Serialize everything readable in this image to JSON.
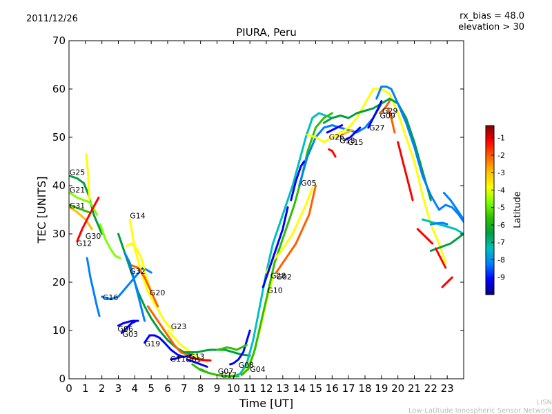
{
  "header": {
    "date": "2011/12/26",
    "rx_bias": "rx_bias = 48.0",
    "elevation": "elevation > 30"
  },
  "footer": {
    "line1": "LISN",
    "line2": "Low-Latitude Ionospheric Sensor Network"
  },
  "colorbar": {
    "label": "Latitude",
    "ticks": [
      "-1",
      "-2",
      "-3",
      "-4",
      "-5",
      "-6",
      "-7",
      "-8",
      "-9"
    ],
    "range": [
      -10,
      -0.3
    ],
    "colormap": [
      "#00007f",
      "#0000ff",
      "#007fff",
      "#00bfbf",
      "#00a040",
      "#2fc000",
      "#7fff00",
      "#ffff00",
      "#ffbf00",
      "#ff6000",
      "#ff0000",
      "#7f0000"
    ]
  },
  "chart_data": {
    "type": "line",
    "title": "PIURA, Peru",
    "xlabel": "Time [UT]",
    "ylabel": "TEC [UNITS]",
    "xlim": [
      0,
      24
    ],
    "ylim": [
      0,
      70
    ],
    "xticks": [
      0,
      1,
      2,
      3,
      4,
      5,
      6,
      7,
      8,
      9,
      10,
      11,
      12,
      13,
      14,
      15,
      16,
      17,
      18,
      19,
      20,
      21,
      22,
      23
    ],
    "yticks": [
      0,
      10,
      20,
      30,
      40,
      50,
      60,
      70
    ],
    "grid": false,
    "series": [
      {
        "name": "G25",
        "lat": -6.5,
        "x": [
          0.05,
          0.5,
          0.9,
          1.2,
          1.5,
          2.0
        ],
        "y": [
          42,
          41.5,
          40.5,
          38,
          34,
          30
        ]
      },
      {
        "name": "G21",
        "lat": -4.5,
        "x": [
          0.05,
          0.5,
          0.9,
          1.3,
          1.7
        ],
        "y": [
          38.5,
          37.5,
          37,
          36.5,
          34
        ]
      },
      {
        "name": "G31",
        "lat": -5.8,
        "x": [
          0.05,
          0.4,
          0.8,
          1.2
        ],
        "y": [
          36,
          35.5,
          35,
          34.5
        ]
      },
      {
        "name": "G30",
        "lat": -3.2,
        "x": [
          0.05,
          0.5,
          1.0,
          1.4
        ],
        "y": [
          35.5,
          34.5,
          33,
          31
        ]
      },
      {
        "name": "G12",
        "lat": -1.5,
        "x": [
          0.5,
          0.8,
          1.1,
          1.4,
          1.8
        ],
        "y": [
          28.5,
          31,
          33,
          35,
          37.5
        ]
      },
      {
        "name": "",
        "lat": -3.6,
        "x": [
          1.05,
          1.15,
          1.2,
          1.25
        ],
        "y": [
          46.5,
          43,
          40,
          37
        ]
      },
      {
        "name": "",
        "lat": -5.0,
        "x": [
          1.9,
          2.2,
          2.5,
          2.8,
          3.1
        ],
        "y": [
          32,
          29,
          27,
          25.5,
          25
        ]
      },
      {
        "name": "",
        "lat": -8.0,
        "x": [
          1.1,
          1.3,
          1.5,
          1.7,
          1.85
        ],
        "y": [
          25,
          21,
          18,
          15,
          13
        ]
      },
      {
        "name": "G16",
        "lat": -8.2,
        "x": [
          2.0,
          2.5,
          3.0,
          3.5,
          4.0,
          4.5,
          5.0
        ],
        "y": [
          17,
          16.5,
          17,
          19,
          21,
          23,
          22
        ]
      },
      {
        "name": "G14",
        "lat": -3.5,
        "x": [
          3.7,
          4.0,
          4.4,
          4.8,
          5.3,
          5.8,
          6.3
        ],
        "y": [
          33,
          27,
          22,
          18,
          15,
          12,
          10
        ]
      },
      {
        "name": "",
        "lat": -4.2,
        "x": [
          3.5,
          3.8,
          4.1,
          4.4,
          4.7,
          5.0
        ],
        "y": [
          27.5,
          28,
          27,
          25,
          21,
          18
        ]
      },
      {
        "name": "G32",
        "lat": -6.8,
        "x": [
          3.0,
          3.4,
          3.8,
          4.2,
          4.6,
          5.0,
          5.5,
          6.0,
          6.5,
          7.0,
          7.5
        ],
        "y": [
          30,
          26,
          22,
          18,
          15,
          12.5,
          10,
          8,
          6.5,
          5.5,
          5
        ]
      },
      {
        "name": "",
        "lat": -2.4,
        "x": [
          3.8,
          4.2,
          4.6,
          5.0,
          5.4
        ],
        "y": [
          23.5,
          23,
          21,
          18,
          15
        ]
      },
      {
        "name": "",
        "lat": -8.0,
        "x": [
          3.4,
          3.7,
          4.0,
          4.3,
          4.6
        ],
        "y": [
          26,
          24,
          20,
          16,
          12
        ]
      },
      {
        "name": "G20",
        "lat": -2.0,
        "x": [
          4.8,
          5.2,
          5.6,
          6.0,
          6.4,
          6.8,
          7.2
        ],
        "y": [
          15,
          13,
          11,
          9,
          7,
          5.5,
          5
        ]
      },
      {
        "name": "G06",
        "lat": -9.3,
        "x": [
          3.0,
          3.3,
          3.6,
          3.9,
          4.2
        ],
        "y": [
          11,
          11.5,
          11.8,
          12,
          12
        ]
      },
      {
        "name": "G03",
        "lat": -9.0,
        "x": [
          3.2,
          3.5,
          3.8,
          4.1
        ],
        "y": [
          9.5,
          10.5,
          11.5,
          12
        ]
      },
      {
        "name": "G19",
        "lat": -9.2,
        "x": [
          4.6,
          4.9,
          5.2,
          5.5,
          5.8,
          6.2,
          6.6,
          7.0
        ],
        "y": [
          7.5,
          9,
          9,
          8.5,
          7.5,
          6,
          5,
          4.5
        ]
      },
      {
        "name": "G23",
        "lat": -3.6,
        "x": [
          6.0,
          6.4,
          6.8,
          7.2,
          7.6,
          8.0,
          8.4
        ],
        "y": [
          10,
          8.5,
          7,
          6,
          5,
          4,
          3.5
        ]
      },
      {
        "name": "G11",
        "lat": -9.5,
        "x": [
          6.2,
          6.5,
          6.8,
          7.1,
          7.4
        ],
        "y": [
          4,
          4.2,
          4.5,
          4.6,
          4.8
        ]
      },
      {
        "name": "G13",
        "lat": -6.3,
        "x": [
          7.0,
          7.4,
          7.8,
          8.2,
          8.6,
          9.0,
          9.5,
          10.0,
          10.5,
          11.0
        ],
        "y": [
          5.5,
          5.5,
          5.5,
          5.8,
          6,
          6,
          6,
          5.5,
          5,
          4.8
        ]
      },
      {
        "name": "G01",
        "lat": -1.5,
        "x": [
          7.3,
          7.6,
          7.9,
          8.2,
          8.6
        ],
        "y": [
          4.5,
          4.2,
          4,
          3.9,
          3.8
        ]
      },
      {
        "name": "",
        "lat": -9.5,
        "x": [
          7.2,
          7.6,
          8.0,
          8.4
        ],
        "y": [
          4.0,
          3.5,
          3.0,
          2.5
        ]
      },
      {
        "name": "G07",
        "lat": -6.0,
        "x": [
          7.5,
          8.0,
          8.5,
          9.0,
          9.5,
          10.0
        ],
        "y": [
          3,
          1.8,
          1.2,
          0.8,
          0.6,
          0.6
        ]
      },
      {
        "name": "G17",
        "lat": -5.2,
        "x": [
          8.0,
          8.5,
          9.0,
          9.5,
          10.0,
          10.3
        ],
        "y": [
          2,
          1.2,
          0.8,
          0.5,
          0.5,
          0.5
        ]
      },
      {
        "name": "G08",
        "lat": -9.2,
        "x": [
          9.8,
          10.0,
          10.3,
          10.6,
          11.0
        ],
        "y": [
          3,
          3.2,
          4,
          5.5,
          10
        ]
      },
      {
        "name": "G04",
        "lat": -3.8,
        "x": [
          10.0,
          10.4,
          10.8,
          11.2,
          11.6,
          12.0,
          12.4
        ],
        "y": [
          0.8,
          1,
          2,
          5,
          10,
          16,
          21
        ]
      },
      {
        "name": "",
        "lat": -5.6,
        "x": [
          9.0,
          9.3,
          9.6,
          9.9,
          10.2,
          10.5,
          10.8
        ],
        "y": [
          6,
          6.2,
          6.5,
          6.3,
          6,
          6.5,
          7
        ]
      },
      {
        "name": "",
        "lat": -7.2,
        "x": [
          10.0,
          10.4,
          10.8,
          11.2,
          11.6,
          12.0,
          12.4,
          12.8,
          13.2,
          13.6,
          14.0,
          14.4,
          14.8,
          15.2,
          15.6,
          16.0
        ],
        "y": [
          0.5,
          1,
          3,
          8,
          15,
          22,
          28,
          32,
          36,
          40,
          45,
          50,
          54,
          55,
          54.5,
          54
        ]
      },
      {
        "name": "",
        "lat": -5.3,
        "x": [
          10.5,
          10.9,
          11.3,
          11.7,
          12.1,
          12.5,
          12.9,
          13.3,
          13.7,
          14.1,
          14.5,
          15.0,
          15.5,
          16.0
        ],
        "y": [
          0.8,
          2,
          6,
          12,
          18,
          24,
          28,
          32,
          36,
          41,
          47,
          52,
          54,
          55
        ]
      },
      {
        "name": "G28",
        "lat": -3.8,
        "x": [
          12.0,
          12.4,
          12.8,
          13.2,
          13.6,
          14.0,
          14.4,
          14.8
        ],
        "y": [
          22,
          24.5,
          26,
          28,
          30,
          33,
          36,
          39.5
        ]
      },
      {
        "name": "G02",
        "lat": -1.8,
        "x": [
          12.6,
          13.0,
          13.4,
          13.8,
          14.2,
          14.6,
          15.0
        ],
        "y": [
          22,
          24,
          26,
          28,
          31,
          34,
          40
        ]
      },
      {
        "name": "G10",
        "lat": -8.8,
        "x": [
          11.8,
          12.2,
          12.6,
          13.0,
          13.3
        ],
        "y": [
          19,
          23,
          27,
          31,
          35.5
        ]
      },
      {
        "name": "G05",
        "lat": -9.3,
        "x": [
          13.5,
          13.8,
          14.1,
          14.3
        ],
        "y": [
          37,
          41,
          44,
          45
        ]
      },
      {
        "name": "",
        "lat": -8.0,
        "x": [
          14.0,
          14.5,
          15.0,
          15.5,
          16.0,
          16.5,
          17.0,
          17.5,
          18.0,
          18.5,
          19.0,
          19.5,
          20.0
        ],
        "y": [
          40,
          46,
          50,
          52,
          52.5,
          52,
          51.5,
          51,
          52,
          54,
          57,
          58,
          57
        ]
      },
      {
        "name": "",
        "lat": -3.8,
        "x": [
          14.5,
          15.0,
          15.5,
          16.0,
          16.5,
          17.0,
          17.5,
          18.0,
          18.5,
          19.0,
          19.5,
          20.0,
          20.5,
          21.0,
          21.5,
          22.0,
          22.5,
          22.9
        ],
        "y": [
          50.5,
          50,
          49,
          50,
          51,
          52,
          54,
          57,
          60,
          60,
          59,
          55,
          50,
          45,
          38,
          32,
          28,
          24
        ]
      },
      {
        "name": "",
        "lat": -1.5,
        "x": [
          15.8,
          16.0,
          16.2
        ],
        "y": [
          47.5,
          47.2,
          46
        ]
      },
      {
        "name": "G26",
        "lat": -9.3,
        "x": [
          15.7,
          16.0,
          16.3,
          16.6
        ],
        "y": [
          51,
          51.5,
          52,
          52.5
        ]
      },
      {
        "name": "G15",
        "lat": -3.2,
        "x": [
          16.3,
          16.6,
          16.9,
          17.2
        ],
        "y": [
          50,
          50.5,
          51,
          51.5
        ]
      },
      {
        "name": "G18",
        "lat": -9.0,
        "x": [
          16.8,
          17.1,
          17.4,
          17.7
        ],
        "y": [
          49.5,
          50,
          51,
          52
        ]
      },
      {
        "name": "",
        "lat": -6.4,
        "x": [
          15.5,
          16.0,
          16.5,
          17.0,
          17.5,
          18.0,
          18.5,
          19.0,
          19.5,
          20.0,
          20.5,
          21.0,
          21.5,
          22.0
        ],
        "y": [
          53,
          54,
          54.5,
          54,
          55,
          55.5,
          56,
          57,
          58,
          57,
          54,
          49,
          43,
          37
        ]
      },
      {
        "name": "G27",
        "lat": -9.3,
        "x": [
          18.2,
          18.5,
          18.8,
          19.0
        ],
        "y": [
          52,
          54,
          56,
          57.5
        ]
      },
      {
        "name": "G09",
        "lat": -2.4,
        "x": [
          18.9,
          19.2,
          19.5
        ],
        "y": [
          55,
          56,
          57.5
        ]
      },
      {
        "name": "G29",
        "lat": -1.8,
        "x": [
          19.4,
          19.6,
          19.8
        ],
        "y": [
          56,
          54,
          51
        ]
      },
      {
        "name": "",
        "lat": -8.0,
        "x": [
          18.7,
          19.0,
          19.3,
          19.6,
          20.0,
          20.5,
          21.0,
          21.5,
          22.0,
          22.5,
          22.9,
          23.3,
          23.7,
          24.0
        ],
        "y": [
          58,
          60.5,
          60.5,
          60,
          57,
          53,
          48,
          42,
          38,
          35,
          36,
          35.5,
          34,
          32.5
        ]
      },
      {
        "name": "",
        "lat": -1.3,
        "x": [
          20.0,
          20.3,
          20.6,
          20.9
        ],
        "y": [
          49,
          45,
          41,
          37
        ]
      },
      {
        "name": "",
        "lat": -1.5,
        "x": [
          21.2,
          21.5,
          21.8,
          22.1
        ],
        "y": [
          31,
          30,
          29,
          28
        ]
      },
      {
        "name": "",
        "lat": -6.2,
        "x": [
          22.0,
          22.4,
          22.8,
          23.2,
          23.6,
          24.0
        ],
        "y": [
          26.5,
          27,
          27.5,
          28,
          29,
          30
        ]
      },
      {
        "name": "",
        "lat": -7.2,
        "x": [
          21.5,
          22.0,
          22.5,
          23.0,
          23.5,
          24.0
        ],
        "y": [
          33,
          32.5,
          32,
          31.5,
          31,
          30
        ]
      },
      {
        "name": "",
        "lat": -8.5,
        "x": [
          22.0,
          22.4,
          22.7,
          23.0
        ],
        "y": [
          32,
          32.2,
          32.3,
          32
        ]
      },
      {
        "name": "",
        "lat": -8.3,
        "x": [
          22.8,
          23.2,
          23.6,
          24.0
        ],
        "y": [
          38.5,
          37,
          35,
          33
        ]
      },
      {
        "name": "",
        "lat": -1.5,
        "x": [
          22.3,
          22.6,
          22.9
        ],
        "y": [
          27,
          25,
          23
        ]
      },
      {
        "name": "",
        "lat": -1.0,
        "x": [
          22.7,
          23.0,
          23.3
        ],
        "y": [
          19,
          20,
          21
        ]
      }
    ],
    "labels": [
      {
        "text": "G25",
        "x": 0.03,
        "y": 42.2
      },
      {
        "text": "G21",
        "x": 0.03,
        "y": 38.6
      },
      {
        "text": "G31",
        "x": 0.03,
        "y": 35.3
      },
      {
        "text": "G30",
        "x": 1.0,
        "y": 29.0
      },
      {
        "text": "G12",
        "x": 0.45,
        "y": 27.5
      },
      {
        "text": "G16",
        "x": 2.05,
        "y": 16.3
      },
      {
        "text": "G14",
        "x": 3.7,
        "y": 33.2
      },
      {
        "text": "G32",
        "x": 3.7,
        "y": 21.7
      },
      {
        "text": "G20",
        "x": 4.9,
        "y": 17.3
      },
      {
        "text": "G06",
        "x": 2.95,
        "y": 9.8
      },
      {
        "text": "G03",
        "x": 3.25,
        "y": 8.7
      },
      {
        "text": "G19",
        "x": 4.6,
        "y": 6.7
      },
      {
        "text": "G23",
        "x": 6.2,
        "y": 10.3
      },
      {
        "text": "G11",
        "x": 6.15,
        "y": 3.6
      },
      {
        "text": "G13",
        "x": 7.3,
        "y": 4.1
      },
      {
        "text": "G01",
        "x": 7.1,
        "y": 3.4
      },
      {
        "text": "G07",
        "x": 9.05,
        "y": 1.0
      },
      {
        "text": "G17",
        "x": 9.25,
        "y": 0.2
      },
      {
        "text": "G08",
        "x": 10.3,
        "y": 2.3
      },
      {
        "text": "G04",
        "x": 11.0,
        "y": 1.4
      },
      {
        "text": "G28",
        "x": 12.25,
        "y": 20.8
      },
      {
        "text": "G02",
        "x": 12.6,
        "y": 20.6
      },
      {
        "text": "G10",
        "x": 12.05,
        "y": 17.8
      },
      {
        "text": "G05",
        "x": 14.1,
        "y": 40.0
      },
      {
        "text": "G26",
        "x": 15.8,
        "y": 49.5
      },
      {
        "text": "G18",
        "x": 16.45,
        "y": 48.8
      },
      {
        "text": "G15",
        "x": 16.95,
        "y": 48.4
      },
      {
        "text": "G27",
        "x": 18.25,
        "y": 51.4
      },
      {
        "text": "G09",
        "x": 18.9,
        "y": 53.9
      },
      {
        "text": "G29",
        "x": 19.05,
        "y": 54.9
      }
    ]
  }
}
